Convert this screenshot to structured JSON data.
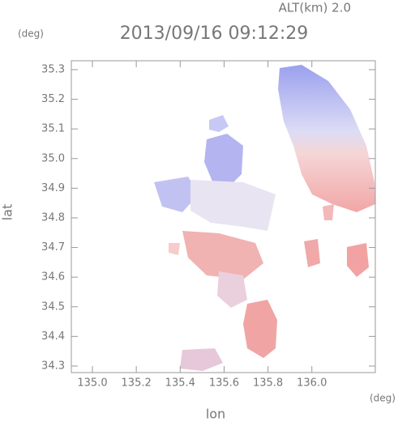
{
  "chart_data": {
    "type": "map",
    "title": "2013/09/16 09:12:29",
    "annotation": "ALT(km) 2.0",
    "x_label": "lon",
    "x_unit": "(deg)",
    "y_label": "lat",
    "y_unit": "(deg)",
    "xlim": [
      134.904,
      136.289
    ],
    "ylim": [
      34.278,
      35.33
    ],
    "xticks": [
      {
        "value": 135.0,
        "label": "135.0"
      },
      135.2,
      135.4,
      135.6,
      135.8,
      {
        "value": 136.0,
        "label": "136.0"
      }
    ],
    "yticks": [
      34.3,
      34.4,
      34.5,
      34.6,
      34.7,
      34.8,
      34.9,
      {
        "value": 35.0,
        "label": "35.0"
      },
      35.1,
      35.2,
      35.3
    ]
  }
}
